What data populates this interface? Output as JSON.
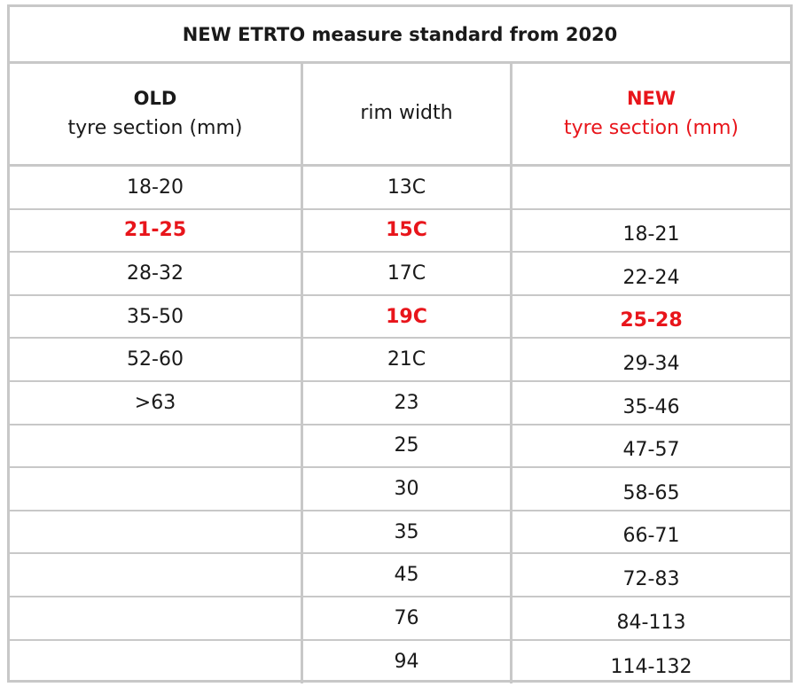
{
  "title": "NEW ETRTO measure standard from 2020",
  "header": {
    "old_label": "OLD",
    "old_sub": "tyre section (mm)",
    "rim_label": "rim width",
    "new_label": "NEW",
    "new_sub": "tyre section (mm)"
  },
  "accent_color": "#e8151b",
  "rows": [
    {
      "old": "18-20",
      "rim": "13C",
      "new": ""
    },
    {
      "old": "21-25",
      "rim": "15C",
      "new": "18-21",
      "old_hl": true,
      "rim_hl": true
    },
    {
      "old": "28-32",
      "rim": "17C",
      "new": "22-24"
    },
    {
      "old": "35-50",
      "rim": "19C",
      "new": "25-28",
      "rim_hl": true,
      "new_hl": true
    },
    {
      "old": "52-60",
      "rim": "21C",
      "new": "29-34"
    },
    {
      "old": ">63",
      "rim": "23",
      "new": "35-46"
    },
    {
      "old": "",
      "rim": "25",
      "new": "47-57"
    },
    {
      "old": "",
      "rim": "30",
      "new": "58-65"
    },
    {
      "old": "",
      "rim": "35",
      "new": "66-71"
    },
    {
      "old": "",
      "rim": "45",
      "new": "72-83"
    },
    {
      "old": "",
      "rim": "76",
      "new": "84-113"
    },
    {
      "old": "",
      "rim": "94",
      "new": "114-132"
    }
  ]
}
